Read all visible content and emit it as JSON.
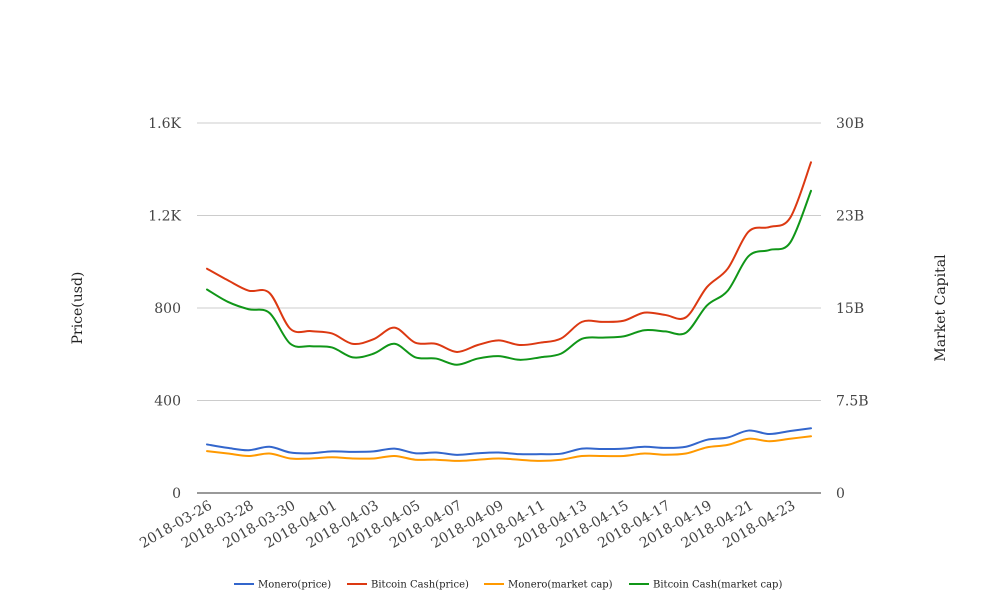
{
  "chart_data": {
    "type": "line",
    "title": "",
    "x_tick_labels": [
      "2018-03-26",
      "2018-03-28",
      "2018-03-30",
      "2018-04-01",
      "2018-04-03",
      "2018-04-05",
      "2018-04-07",
      "2018-04-09",
      "2018-04-11",
      "2018-04-13",
      "2018-04-15",
      "2018-04-17",
      "2018-04-19",
      "2018-04-21",
      "2018-04-23"
    ],
    "x": [
      "2018-03-26",
      "2018-03-27",
      "2018-03-28",
      "2018-03-29",
      "2018-03-30",
      "2018-03-31",
      "2018-04-01",
      "2018-04-02",
      "2018-04-03",
      "2018-04-04",
      "2018-04-05",
      "2018-04-06",
      "2018-04-07",
      "2018-04-08",
      "2018-04-09",
      "2018-04-10",
      "2018-04-11",
      "2018-04-12",
      "2018-04-13",
      "2018-04-14",
      "2018-04-15",
      "2018-04-16",
      "2018-04-17",
      "2018-04-18",
      "2018-04-19",
      "2018-04-20",
      "2018-04-21",
      "2018-04-22",
      "2018-04-23",
      "2018-04-24"
    ],
    "left_axis": {
      "label": "Price(usd)",
      "ticks": [
        "0",
        "400",
        "800",
        "1.2K",
        "1.6K"
      ],
      "tick_values": [
        0,
        400,
        800,
        1200,
        1600
      ],
      "range": [
        0,
        1600
      ]
    },
    "right_axis": {
      "label": "Market Capital",
      "ticks": [
        "0",
        "7.5B",
        "15B",
        "23B",
        "30B"
      ],
      "tick_values": [
        0,
        7.5,
        15,
        22.5,
        30
      ],
      "unit": "billion",
      "range": [
        0,
        30
      ]
    },
    "series": [
      {
        "name": "Monero(price)",
        "axis": "left",
        "color": "#3366cc",
        "values": [
          210,
          195,
          185,
          200,
          175,
          172,
          180,
          178,
          180,
          192,
          172,
          175,
          165,
          172,
          175,
          168,
          168,
          170,
          192,
          190,
          192,
          200,
          195,
          200,
          230,
          240,
          270,
          255,
          268,
          280
        ]
      },
      {
        "name": "Bitcoin Cash(price)",
        "axis": "left",
        "color": "#dc3912",
        "values": [
          970,
          920,
          875,
          865,
          710,
          700,
          690,
          645,
          665,
          715,
          650,
          645,
          610,
          640,
          660,
          640,
          650,
          668,
          740,
          740,
          745,
          780,
          770,
          760,
          890,
          970,
          1130,
          1150,
          1190,
          1430
        ]
      },
      {
        "name": "Monero(market cap)",
        "axis": "right",
        "color": "#ff9900",
        "values": [
          3.4,
          3.2,
          3.0,
          3.2,
          2.8,
          2.8,
          2.9,
          2.8,
          2.8,
          3.0,
          2.7,
          2.7,
          2.6,
          2.7,
          2.8,
          2.7,
          2.6,
          2.7,
          3.0,
          3.0,
          3.0,
          3.2,
          3.1,
          3.2,
          3.7,
          3.9,
          4.4,
          4.2,
          4.4,
          4.6
        ]
      },
      {
        "name": "Bitcoin Cash(market cap)",
        "axis": "right",
        "color": "#109618",
        "values": [
          16.5,
          15.5,
          14.9,
          14.6,
          12.1,
          11.9,
          11.8,
          11.0,
          11.3,
          12.1,
          11.0,
          10.9,
          10.4,
          10.9,
          11.1,
          10.8,
          11.0,
          11.3,
          12.5,
          12.6,
          12.7,
          13.2,
          13.1,
          13.0,
          15.2,
          16.4,
          19.2,
          19.7,
          20.3,
          24.5
        ]
      }
    ],
    "grid": true,
    "legend": "bottom"
  }
}
